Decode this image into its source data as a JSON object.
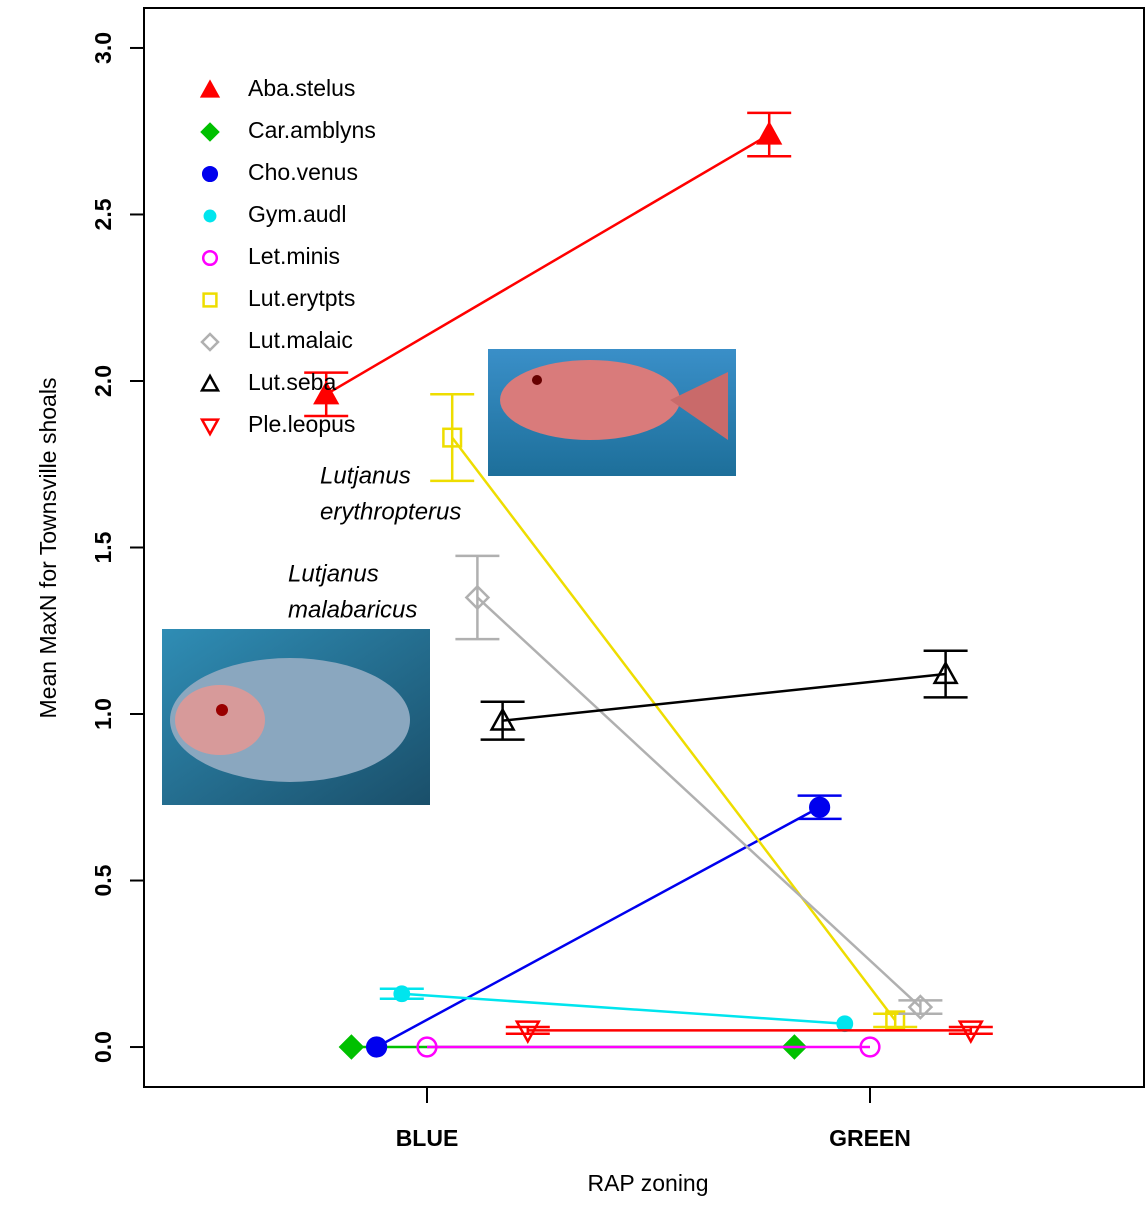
{
  "chart_data": {
    "type": "line",
    "x_label": "RAP zoning",
    "y_label": "Mean MaxN for Townsville shoals",
    "categories": [
      "BLUE",
      "GREEN"
    ],
    "ylim": [
      -0.12,
      3.12
    ],
    "yticks": [
      {
        "value": 0,
        "label": "0.0"
      },
      {
        "value": 0.5,
        "label": "0.5"
      },
      {
        "value": 1,
        "label": "1.0"
      },
      {
        "value": 1.5,
        "label": "1.5"
      },
      {
        "value": 2,
        "label": "2.0"
      },
      {
        "value": 2.5,
        "label": "2.5"
      },
      {
        "value": 3,
        "label": "3.0"
      }
    ],
    "legend": "top-left",
    "series": [
      {
        "name": "Aba.stelus",
        "color": "#ff0000",
        "marker": "triangle-filled",
        "values": [
          1.96,
          2.74
        ],
        "errors": [
          0.065,
          0.065
        ]
      },
      {
        "name": "Car.amblyns",
        "color": "#00c000",
        "marker": "diamond-filled",
        "values": [
          0,
          0
        ],
        "errors": [
          0,
          0
        ]
      },
      {
        "name": "Cho.venus",
        "color": "#0000ee",
        "marker": "circle-filled",
        "values": [
          0,
          0.72
        ],
        "errors": [
          0,
          0.035
        ]
      },
      {
        "name": "Gym.audl",
        "color": "#00e5ee",
        "marker": "dot-filled",
        "values": [
          0.16,
          0.07
        ],
        "errors": [
          0.015,
          0
        ]
      },
      {
        "name": "Let.minis",
        "color": "#ff00ff",
        "marker": "circle-open",
        "values": [
          0,
          0
        ],
        "errors": [
          0,
          0
        ]
      },
      {
        "name": "Lut.erytpts",
        "color": "#eedd00",
        "marker": "square-open",
        "values": [
          1.83,
          0.08
        ],
        "errors": [
          0.13,
          0.02
        ]
      },
      {
        "name": "Lut.malaic",
        "color": "#b0b0b0",
        "marker": "diamond-open",
        "values": [
          1.35,
          0.12
        ],
        "errors": [
          0.125,
          0.02
        ]
      },
      {
        "name": "Lut.seba",
        "color": "#000000",
        "marker": "triangle-open",
        "values": [
          0.98,
          1.12
        ],
        "errors": [
          0.057,
          0.07
        ]
      },
      {
        "name": "Ple.leopus",
        "color": "#ff0000",
        "marker": "triangle-down-open",
        "values": [
          0.05,
          0.05
        ],
        "errors": [
          0.01,
          0.01
        ]
      }
    ],
    "annotations": [
      [
        "Lutjanus",
        "erythropterus"
      ],
      [
        "Lutjanus",
        "malabaricus"
      ]
    ]
  }
}
